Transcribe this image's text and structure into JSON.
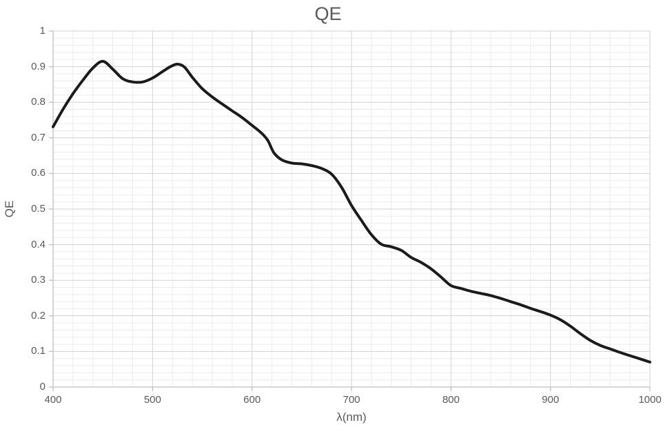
{
  "chart_data": {
    "type": "line",
    "title": "QE",
    "xlabel": "λ(nm)",
    "ylabel": "QE",
    "xlim": [
      400,
      1000
    ],
    "ylim": [
      0,
      1
    ],
    "x_major_tick_step": 100,
    "y_major_tick_step": 0.1,
    "x_minor_grid_step": 20,
    "y_minor_grid_step": 0.02,
    "x_tick_labels": [
      "400",
      "500",
      "600",
      "700",
      "800",
      "900",
      "1000"
    ],
    "y_tick_labels": [
      "0",
      "0.1",
      "0.2",
      "0.3",
      "0.4",
      "0.5",
      "0.6",
      "0.7",
      "0.8",
      "0.9",
      "1"
    ],
    "grid": "major and minor gridlines, both axes",
    "legend": "none",
    "series": [
      {
        "name": "QE",
        "color": "#1b1b1b",
        "smooth": true,
        "points": [
          [
            400,
            0.731
          ],
          [
            410,
            0.78
          ],
          [
            420,
            0.824
          ],
          [
            430,
            0.862
          ],
          [
            440,
            0.896
          ],
          [
            450,
            0.915
          ],
          [
            460,
            0.893
          ],
          [
            470,
            0.866
          ],
          [
            480,
            0.857
          ],
          [
            490,
            0.857
          ],
          [
            500,
            0.868
          ],
          [
            510,
            0.886
          ],
          [
            518,
            0.9
          ],
          [
            525,
            0.907
          ],
          [
            532,
            0.899
          ],
          [
            540,
            0.87
          ],
          [
            550,
            0.838
          ],
          [
            560,
            0.815
          ],
          [
            570,
            0.795
          ],
          [
            580,
            0.776
          ],
          [
            590,
            0.757
          ],
          [
            600,
            0.735
          ],
          [
            610,
            0.712
          ],
          [
            616,
            0.692
          ],
          [
            622,
            0.658
          ],
          [
            630,
            0.638
          ],
          [
            640,
            0.629
          ],
          [
            650,
            0.627
          ],
          [
            660,
            0.622
          ],
          [
            670,
            0.614
          ],
          [
            680,
            0.598
          ],
          [
            690,
            0.561
          ],
          [
            700,
            0.51
          ],
          [
            710,
            0.468
          ],
          [
            720,
            0.428
          ],
          [
            730,
            0.401
          ],
          [
            740,
            0.394
          ],
          [
            750,
            0.384
          ],
          [
            760,
            0.364
          ],
          [
            770,
            0.35
          ],
          [
            780,
            0.332
          ],
          [
            790,
            0.309
          ],
          [
            800,
            0.285
          ],
          [
            810,
            0.277
          ],
          [
            820,
            0.269
          ],
          [
            830,
            0.263
          ],
          [
            840,
            0.257
          ],
          [
            850,
            0.249
          ],
          [
            860,
            0.24
          ],
          [
            870,
            0.231
          ],
          [
            880,
            0.221
          ],
          [
            890,
            0.212
          ],
          [
            900,
            0.202
          ],
          [
            910,
            0.189
          ],
          [
            920,
            0.171
          ],
          [
            930,
            0.15
          ],
          [
            940,
            0.131
          ],
          [
            950,
            0.117
          ],
          [
            960,
            0.107
          ],
          [
            970,
            0.097
          ],
          [
            980,
            0.088
          ],
          [
            990,
            0.079
          ],
          [
            1000,
            0.07
          ]
        ]
      }
    ]
  },
  "colors": {
    "background": "#ffffff",
    "line": "#1b1b1b",
    "major_grid": "#d2d2d2",
    "minor_grid": "#ebebeb",
    "axis": "#bfbfbf",
    "text": "#595959"
  }
}
